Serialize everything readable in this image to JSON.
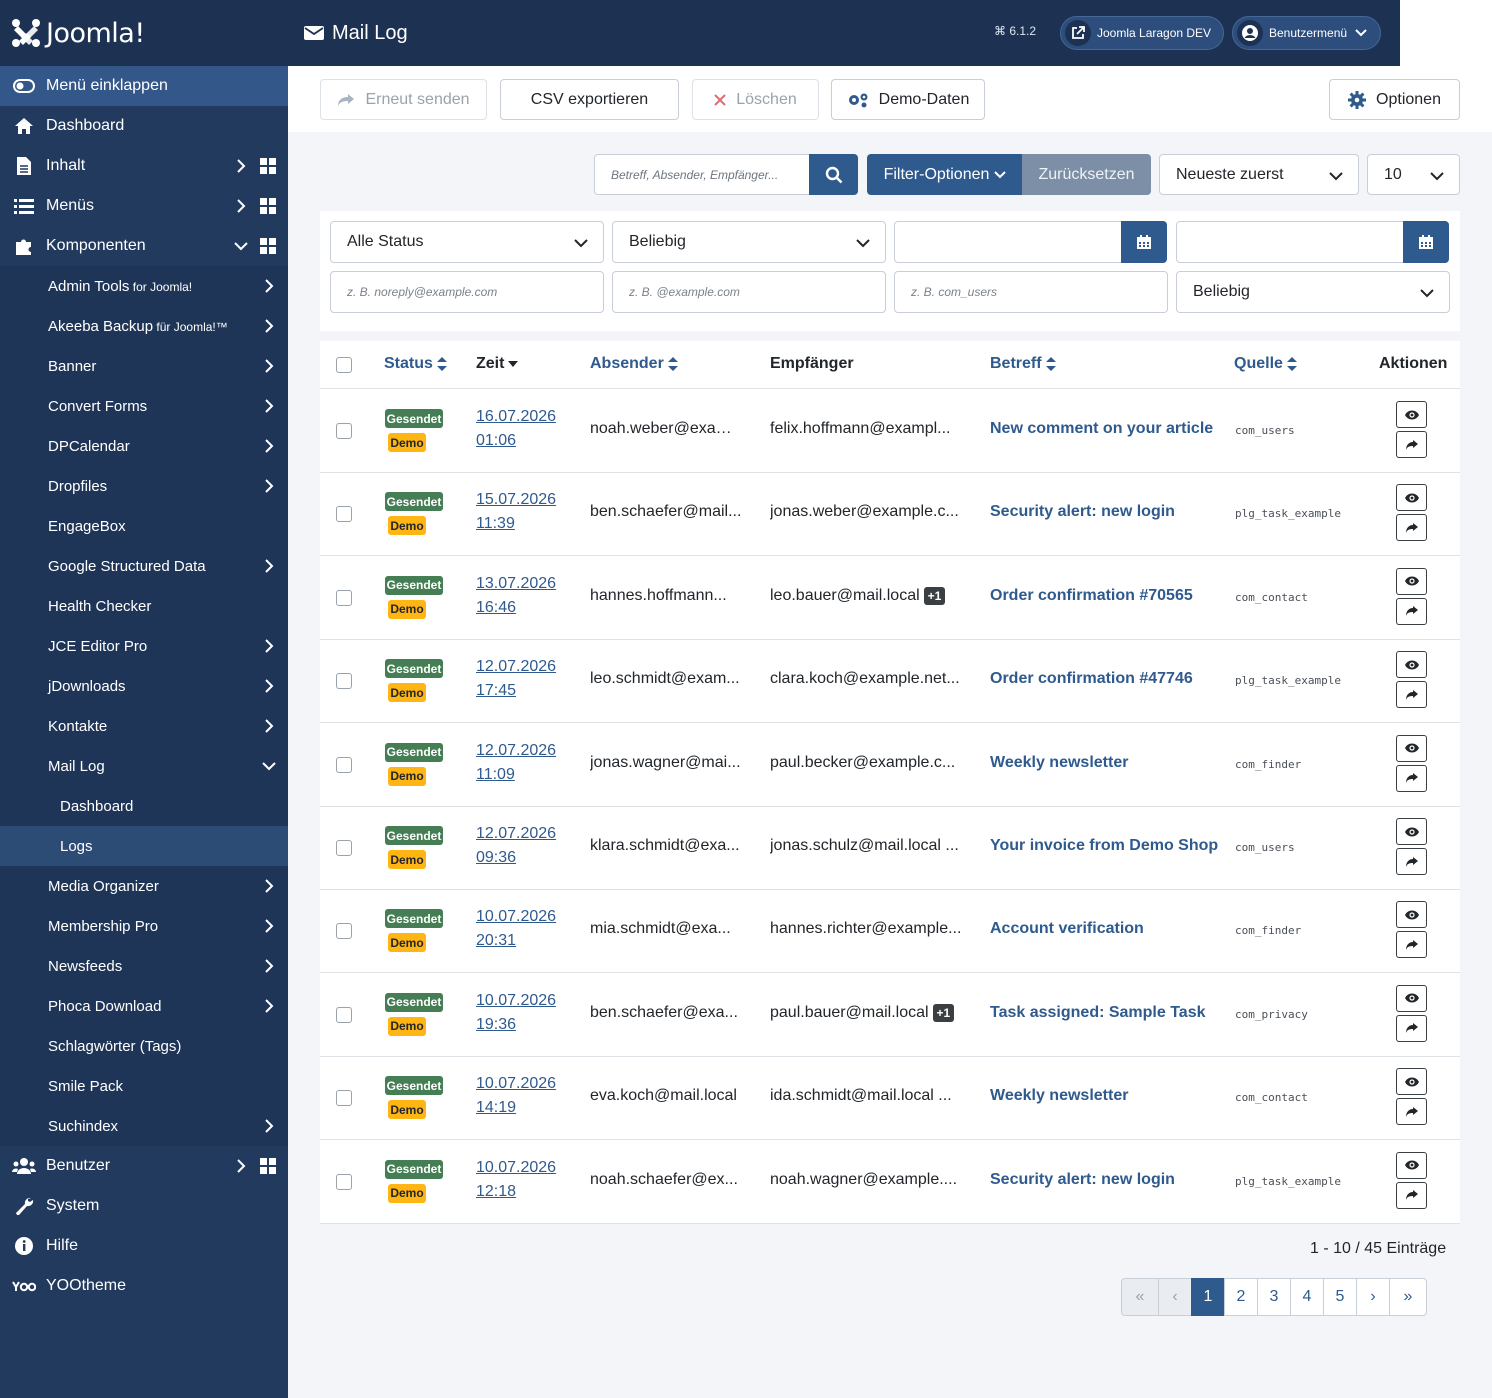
{
  "brand": {
    "name": "Joomla!"
  },
  "sidebar": {
    "items": [
      {
        "label": "Menü einklappen",
        "icon": "toggle-icon"
      },
      {
        "label": "Dashboard",
        "icon": "home-icon"
      },
      {
        "label": "Inhalt",
        "icon": "file-icon"
      },
      {
        "label": "Menüs",
        "icon": "list-icon"
      },
      {
        "label": "Komponenten",
        "icon": "puzzle-icon"
      }
    ],
    "components": [
      {
        "label": "Admin Tools",
        "small": " for Joomla!",
        "chev": true
      },
      {
        "label": "Akeeba Backup",
        "small": " für Joomla!™",
        "chev": true
      },
      {
        "label": "Banner",
        "small": "",
        "chev": true
      },
      {
        "label": "Convert Forms",
        "small": "",
        "chev": true
      },
      {
        "label": "DPCalendar",
        "small": "",
        "chev": true
      },
      {
        "label": "Dropfiles",
        "small": "",
        "chev": true
      },
      {
        "label": "EngageBox",
        "small": "",
        "chev": false
      },
      {
        "label": "Google Structured Data",
        "small": "",
        "chev": true
      },
      {
        "label": "Health Checker",
        "small": "",
        "chev": false
      },
      {
        "label": "JCE Editor Pro",
        "small": "",
        "chev": true
      },
      {
        "label": "jDownloads",
        "small": "",
        "chev": true
      },
      {
        "label": "Kontakte",
        "small": "",
        "chev": true
      },
      {
        "label": "Mail Log",
        "small": "",
        "chev": true
      }
    ],
    "maillog_sub": [
      "Dashboard",
      "Logs"
    ],
    "components2": [
      {
        "label": "Media Organizer",
        "chev": true
      },
      {
        "label": "Membership Pro",
        "chev": true
      },
      {
        "label": "Newsfeeds",
        "chev": true
      },
      {
        "label": "Phoca Download",
        "chev": true
      },
      {
        "label": "Schlagwörter (Tags)",
        "chev": false
      },
      {
        "label": "Smile Pack",
        "chev": false
      },
      {
        "label": "Suchindex",
        "chev": true
      }
    ],
    "bottom": [
      {
        "label": "Benutzer",
        "icon": "users-icon"
      },
      {
        "label": "System",
        "icon": "wrench-icon"
      },
      {
        "label": "Hilfe",
        "icon": "info-icon"
      },
      {
        "label": "YOOtheme",
        "icon": "yootheme-icon"
      }
    ]
  },
  "header": {
    "title": "Mail Log",
    "version": "6.1.2",
    "site_button": "Joomla Laragon DEV",
    "user_menu": "Benutzermenü"
  },
  "toolbar": {
    "resend": "Erneut senden",
    "csv": "CSV exportieren",
    "delete": "Löschen",
    "demo": "Demo-Daten",
    "options": "Optionen"
  },
  "search": {
    "placeholder": "Betreff, Absender, Empfänger...",
    "filter_options": "Filter-Optionen",
    "reset": "Zurücksetzen",
    "order": "Neueste zuerst",
    "limit": "10"
  },
  "filters": {
    "status": "Alle Status",
    "any1": "Beliebig",
    "from_placeholder": "z. B. noreply@example.com",
    "to_placeholder": "z. B. @example.com",
    "source_placeholder": "z. B. com_users",
    "any2": "Beliebig"
  },
  "table": {
    "headers": {
      "status": "Status",
      "time": "Zeit",
      "sender": "Absender",
      "recipient": "Empfänger",
      "subject": "Betreff",
      "source": "Quelle",
      "actions": "Aktionen"
    },
    "rows": [
      {
        "status": "Gesendet",
        "tag": "Demo",
        "date": "16.07.2026",
        "time": "01:06",
        "sender": "noah.weber@exam...",
        "recipient": "felix.hoffmann@exampl...",
        "extra": "",
        "subject": "New comment on your article",
        "source": "com_users"
      },
      {
        "status": "Gesendet",
        "tag": "Demo",
        "date": "15.07.2026",
        "time": "11:39",
        "sender": "ben.schaefer@mail...",
        "recipient": "jonas.weber@example.c...",
        "extra": "",
        "subject": "Security alert: new login",
        "source": "plg_task_example"
      },
      {
        "status": "Gesendet",
        "tag": "Demo",
        "date": "13.07.2026",
        "time": "16:46",
        "sender": "hannes.hoffmann...",
        "recipient": "leo.bauer@mail.local",
        "extra": "+1",
        "subject": "Order confirmation #70565",
        "source": "com_contact"
      },
      {
        "status": "Gesendet",
        "tag": "Demo",
        "date": "12.07.2026",
        "time": "17:45",
        "sender": "leo.schmidt@exam...",
        "recipient": "clara.koch@example.net...",
        "extra": "",
        "subject": "Order confirmation #47746",
        "source": "plg_task_example"
      },
      {
        "status": "Gesendet",
        "tag": "Demo",
        "date": "12.07.2026",
        "time": "11:09",
        "sender": "jonas.wagner@mai...",
        "recipient": "paul.becker@example.c...",
        "extra": "",
        "subject": "Weekly newsletter",
        "source": "com_finder"
      },
      {
        "status": "Gesendet",
        "tag": "Demo",
        "date": "12.07.2026",
        "time": "09:36",
        "sender": "klara.schmidt@exa...",
        "recipient": "jonas.schulz@mail.local ...",
        "extra": "",
        "subject": "Your invoice from Demo Shop",
        "source": "com_users"
      },
      {
        "status": "Gesendet",
        "tag": "Demo",
        "date": "10.07.2026",
        "time": "20:31",
        "sender": "mia.schmidt@exa...",
        "recipient": "hannes.richter@example...",
        "extra": "",
        "subject": "Account verification",
        "source": "com_finder"
      },
      {
        "status": "Gesendet",
        "tag": "Demo",
        "date": "10.07.2026",
        "time": "19:36",
        "sender": "ben.schaefer@exa...",
        "recipient": "paul.bauer@mail.local",
        "extra": "+1",
        "subject": "Task assigned: Sample Task",
        "source": "com_privacy"
      },
      {
        "status": "Gesendet",
        "tag": "Demo",
        "date": "10.07.2026",
        "time": "14:19",
        "sender": "eva.koch@mail.local",
        "recipient": "ida.schmidt@mail.local ...",
        "extra": "",
        "subject": "Weekly newsletter",
        "source": "com_contact"
      },
      {
        "status": "Gesendet",
        "tag": "Demo",
        "date": "10.07.2026",
        "time": "12:18",
        "sender": "noah.schaefer@ex...",
        "recipient": "noah.wagner@example....",
        "extra": "",
        "subject": "Security alert: new login",
        "source": "plg_task_example"
      }
    ]
  },
  "pagination": {
    "summary": "1 - 10 / 45 Einträge",
    "pages": [
      "1",
      "2",
      "3",
      "4",
      "5"
    ],
    "current": "1"
  },
  "colors": {
    "sidebar": "#223a5e",
    "header": "#1d3252",
    "primary": "#2f5a8e",
    "success": "#457d54",
    "warning": "#ffb514"
  }
}
